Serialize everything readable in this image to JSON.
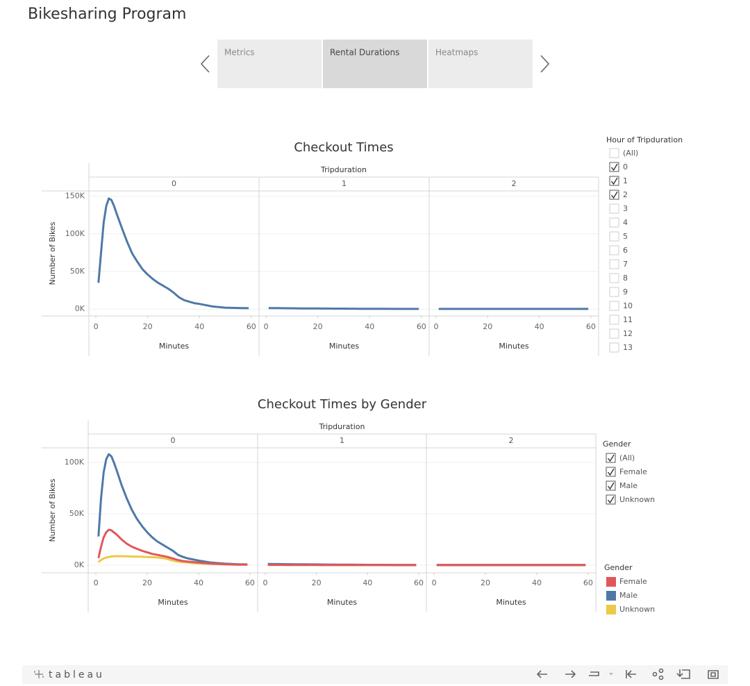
{
  "header": {
    "title": "Bikesharing Program"
  },
  "tabs": [
    {
      "label": "Metrics",
      "selected": false
    },
    {
      "label": "Rental Durations",
      "selected": true
    },
    {
      "label": "Heatmaps",
      "selected": false
    }
  ],
  "chart_data": [
    {
      "type": "line",
      "title": "Checkout Times",
      "facet_title": "Tripduration",
      "xlabel": "Minutes",
      "ylabel": "Number of Bikes",
      "color": "#4e79a7",
      "grid": true,
      "xlim": [
        -2.7,
        63
      ],
      "xticks": [
        0,
        20,
        40,
        60
      ],
      "ylim": [
        -9000,
        157000
      ],
      "yticks": [
        {
          "value": 0,
          "label": "0K"
        },
        {
          "value": 50000,
          "label": "50K"
        },
        {
          "value": 100000,
          "label": "100K"
        },
        {
          "value": 150000,
          "label": "150K"
        }
      ],
      "x": [
        1,
        2,
        3,
        4,
        5,
        6,
        7,
        8,
        10,
        12,
        14,
        16,
        18,
        20,
        22,
        24,
        26,
        28,
        30,
        32,
        34,
        36,
        38,
        40,
        45,
        50,
        55,
        59
      ],
      "facets": [
        {
          "label": "0",
          "values": [
            35000,
            75000,
            115000,
            137000,
            147000,
            145000,
            137000,
            127000,
            108000,
            90000,
            74000,
            63000,
            53000,
            46000,
            40000,
            35000,
            31000,
            27000,
            22000,
            16000,
            12000,
            10000,
            8000,
            7000,
            3500,
            2000,
            1500,
            1200
          ]
        },
        {
          "label": "1",
          "values": [
            1500,
            1450,
            1400,
            1350,
            1300,
            1250,
            1200,
            1150,
            1100,
            1050,
            1000,
            950,
            900,
            850,
            800,
            760,
            720,
            680,
            640,
            600,
            560,
            520,
            480,
            450,
            400,
            350,
            320,
            300
          ]
        },
        {
          "label": "2",
          "values": [
            300,
            300,
            300,
            300,
            300,
            300,
            300,
            300,
            300,
            300,
            300,
            300,
            300,
            300,
            300,
            300,
            300,
            300,
            300,
            300,
            300,
            300,
            300,
            300,
            300,
            300,
            300,
            300
          ]
        }
      ]
    },
    {
      "type": "line",
      "title": "Checkout Times by Gender",
      "facet_title": "Tripduration",
      "xlabel": "Minutes",
      "ylabel": "Number of Bikes",
      "grid": true,
      "legend": {
        "title": "Gender"
      },
      "xlim": [
        -3,
        63
      ],
      "xticks": [
        0,
        20,
        40,
        60
      ],
      "ylim": [
        -7400,
        114200
      ],
      "yticks": [
        {
          "value": 0,
          "label": "0K"
        },
        {
          "value": 50000,
          "label": "50K"
        },
        {
          "value": 100000,
          "label": "100K"
        }
      ],
      "series": [
        {
          "name": "Female",
          "color": "#e15759"
        },
        {
          "name": "Male",
          "color": "#4e79a7"
        },
        {
          "name": "Unknown",
          "color": "#edc948"
        }
      ],
      "x": [
        1,
        2,
        3,
        4,
        5,
        6,
        7,
        8,
        10,
        12,
        14,
        16,
        18,
        20,
        22,
        24,
        26,
        28,
        30,
        32,
        34,
        36,
        38,
        40,
        45,
        50,
        55,
        59
      ],
      "facets": [
        {
          "label": "0",
          "values": [
            [
              7000,
              18000,
              27000,
              32000,
              34500,
              34000,
              32000,
              30000,
              25000,
              21000,
              18000,
              16000,
              14000,
              12500,
              11000,
              10000,
              9000,
              8000,
              6500,
              5000,
              4000,
              3500,
              3000,
              2500,
              1500,
              1000,
              600,
              500
            ],
            [
              28000,
              65000,
              90000,
              103000,
              108000,
              106000,
              100000,
              93000,
              78000,
              65000,
              54000,
              45000,
              38000,
              32000,
              27000,
              23000,
              20000,
              17000,
              14000,
              10000,
              8000,
              6500,
              5500,
              4500,
              2500,
              1500,
              1000,
              800
            ],
            [
              3000,
              5000,
              6500,
              7500,
              8000,
              8500,
              8700,
              8800,
              8800,
              8700,
              8500,
              8400,
              8200,
              8000,
              7800,
              7500,
              7000,
              6000,
              4500,
              3500,
              3000,
              2500,
              2000,
              1700,
              1200,
              900,
              600,
              500
            ]
          ]
        },
        {
          "label": "1",
          "values": [
            [
              400,
              390,
              380,
              370,
              360,
              350,
              340,
              330,
              320,
              310,
              300,
              290,
              280,
              270,
              260,
              250,
              240,
              230,
              220,
              210,
              200,
              190,
              180,
              170,
              150,
              130,
              110,
              100
            ],
            [
              1200,
              1170,
              1140,
              1110,
              1080,
              1050,
              1020,
              990,
              950,
              910,
              870,
              830,
              790,
              750,
              710,
              670,
              630,
              590,
              550,
              510,
              480,
              450,
              420,
              400,
              360,
              330,
              310,
              300
            ],
            [
              200,
              195,
              190,
              185,
              180,
              175,
              170,
              165,
              160,
              155,
              150,
              145,
              140,
              135,
              130,
              125,
              120,
              115,
              110,
              105,
              100,
              95,
              90,
              85,
              75,
              65,
              55,
              50
            ]
          ]
        },
        {
          "label": "2",
          "values": [
            [
              100,
              100,
              100,
              100,
              100,
              100,
              100,
              100,
              100,
              100,
              100,
              100,
              100,
              100,
              100,
              100,
              100,
              100,
              100,
              100,
              100,
              100,
              100,
              100,
              100,
              100,
              100,
              100
            ],
            [
              300,
              300,
              300,
              300,
              300,
              300,
              300,
              300,
              300,
              300,
              300,
              300,
              300,
              300,
              300,
              300,
              300,
              300,
              300,
              300,
              300,
              300,
              300,
              300,
              300,
              300,
              300,
              300
            ],
            [
              50,
              50,
              50,
              50,
              50,
              50,
              50,
              50,
              50,
              50,
              50,
              50,
              50,
              50,
              50,
              50,
              50,
              50,
              50,
              50,
              50,
              50,
              50,
              50,
              50,
              50,
              50,
              50
            ]
          ]
        }
      ]
    }
  ],
  "filters": [
    {
      "title": "Hour of Tripduration",
      "items": [
        {
          "label": "(All)",
          "checked": false
        },
        {
          "label": "0",
          "checked": true
        },
        {
          "label": "1",
          "checked": true
        },
        {
          "label": "2",
          "checked": true
        },
        {
          "label": "3",
          "checked": false
        },
        {
          "label": "4",
          "checked": false
        },
        {
          "label": "5",
          "checked": false
        },
        {
          "label": "6",
          "checked": false
        },
        {
          "label": "7",
          "checked": false
        },
        {
          "label": "8",
          "checked": false
        },
        {
          "label": "9",
          "checked": false
        },
        {
          "label": "10",
          "checked": false
        },
        {
          "label": "11",
          "checked": false
        },
        {
          "label": "12",
          "checked": false
        },
        {
          "label": "13",
          "checked": false
        }
      ]
    },
    {
      "title": "Gender",
      "items": [
        {
          "label": "(All)",
          "checked": true
        },
        {
          "label": "Female",
          "checked": true
        },
        {
          "label": "Male",
          "checked": true
        },
        {
          "label": "Unknown",
          "checked": true
        }
      ]
    }
  ],
  "toolbar": {
    "logo": "tableau"
  }
}
